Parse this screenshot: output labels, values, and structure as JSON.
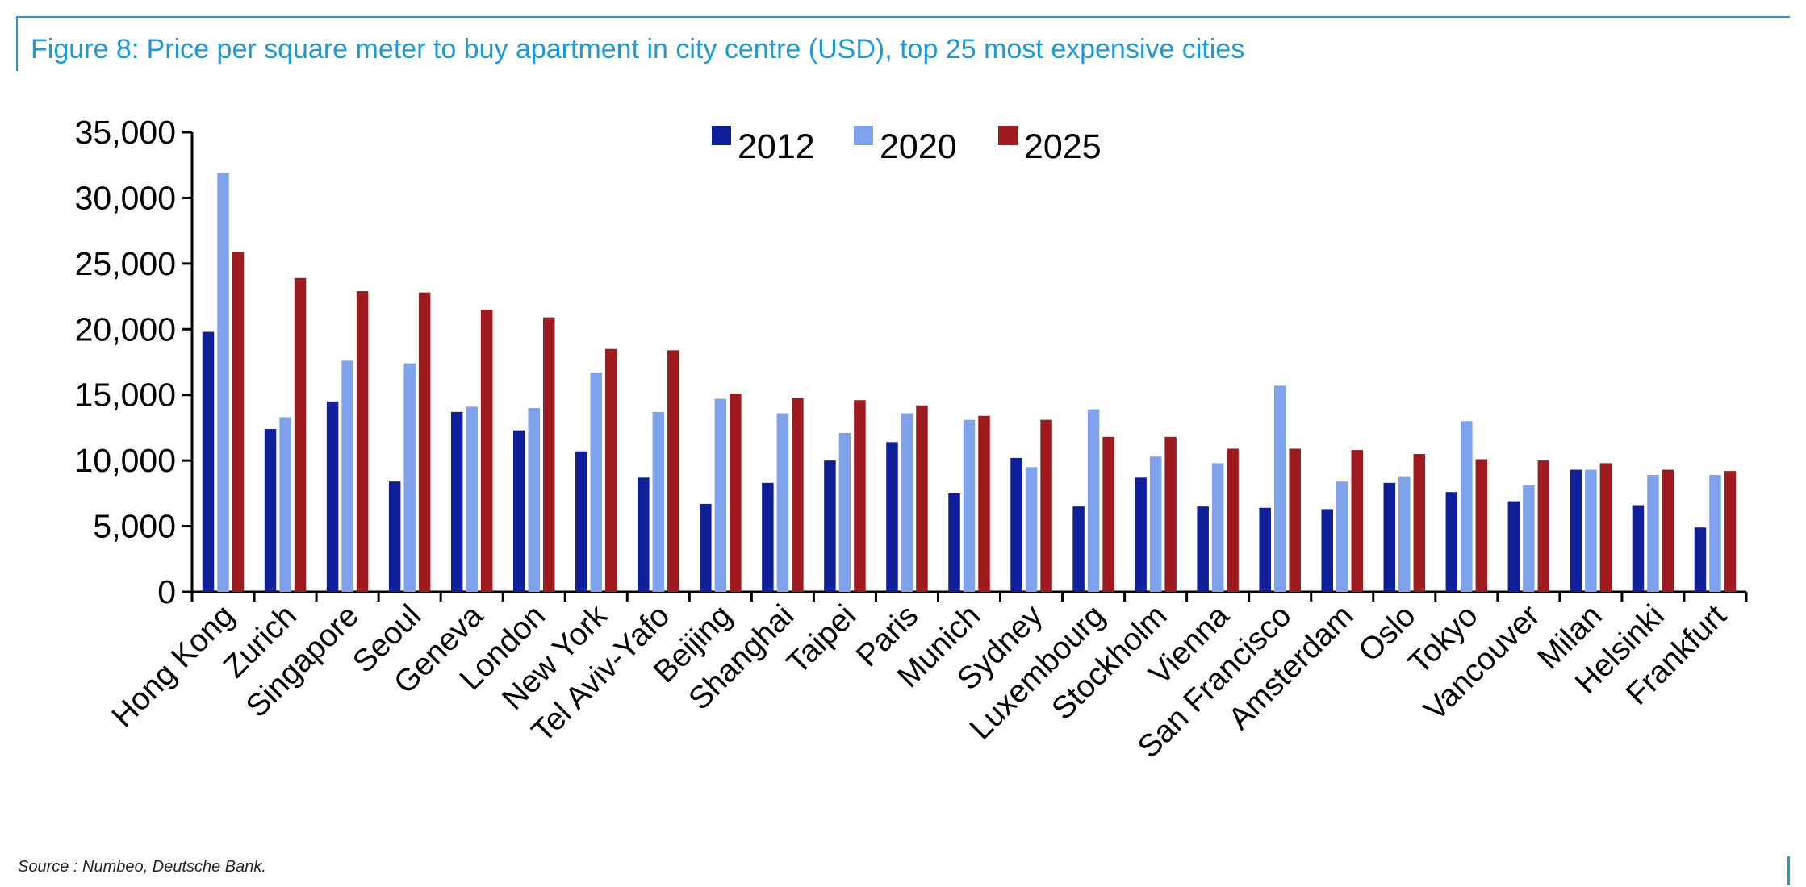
{
  "title": "Figure 8: Price per square meter to buy apartment in city centre (USD), top 25 most expensive cities",
  "source": "Source : Numbeo, Deutsche Bank.",
  "colors": {
    "frame": "#1c9ad6",
    "s2012": "#0f1f9a",
    "s2020": "#7ea2ec",
    "s2025": "#9e1a1e"
  },
  "chart_data": {
    "type": "bar",
    "title": "Figure 8: Price per square meter to buy apartment in city centre (USD), top 25 most expensive cities",
    "xlabel": "",
    "ylabel": "",
    "ylim": [
      0,
      35000
    ],
    "yticks": [
      0,
      5000,
      10000,
      15000,
      20000,
      25000,
      30000,
      35000
    ],
    "ytick_labels": [
      "0",
      "5,000",
      "10,000",
      "15,000",
      "20,000",
      "25,000",
      "30,000",
      "35,000"
    ],
    "grid": false,
    "legend": "top-center",
    "categories": [
      "Hong Kong",
      "Zurich",
      "Singapore",
      "Seoul",
      "Geneva",
      "London",
      "New York",
      "Tel Aviv-Yafo",
      "Beijing",
      "Shanghai",
      "Taipei",
      "Paris",
      "Munich",
      "Sydney",
      "Luxembourg",
      "Stockholm",
      "Vienna",
      "San Francisco",
      "Amsterdam",
      "Oslo",
      "Tokyo",
      "Vancouver",
      "Milan",
      "Helsinki",
      "Frankfurt"
    ],
    "series": [
      {
        "name": "2012",
        "color": "#0f1f9a",
        "values": [
          19800,
          12400,
          14500,
          8400,
          13700,
          12300,
          10700,
          8700,
          6700,
          8300,
          10000,
          11400,
          7500,
          10200,
          6500,
          8700,
          6500,
          6400,
          6300,
          8300,
          7600,
          6900,
          9300,
          6600,
          4900
        ]
      },
      {
        "name": "2020",
        "color": "#7ea2ec",
        "values": [
          31900,
          13300,
          17600,
          17400,
          14100,
          14000,
          16700,
          13700,
          14700,
          13600,
          12100,
          13600,
          13100,
          9500,
          13900,
          10300,
          9800,
          15700,
          8400,
          8800,
          13000,
          8100,
          9300,
          8900,
          8900
        ]
      },
      {
        "name": "2025",
        "color": "#9e1a1e",
        "values": [
          25900,
          23900,
          22900,
          22800,
          21500,
          20900,
          18500,
          18400,
          15100,
          14800,
          14600,
          14200,
          13400,
          13100,
          11800,
          11800,
          10900,
          10900,
          10800,
          10500,
          10100,
          10000,
          9800,
          9300,
          9200
        ]
      }
    ]
  }
}
